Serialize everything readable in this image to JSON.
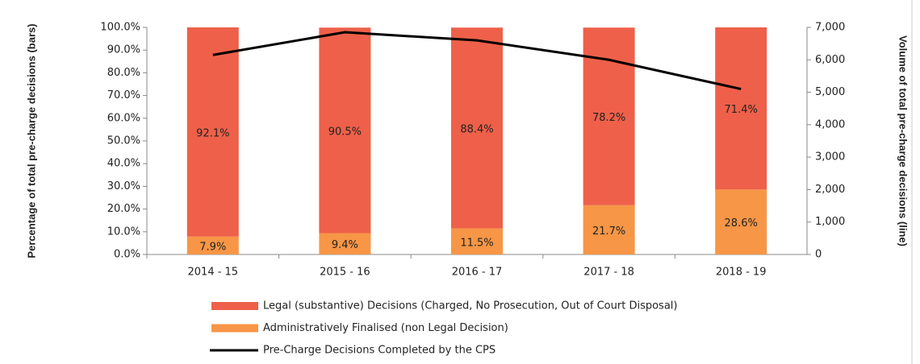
{
  "chart_data": {
    "type": "bar",
    "stacked": true,
    "categories": [
      "2014 - 15",
      "2015 - 16",
      "2016 - 17",
      "2017 - 18",
      "2018 - 19"
    ],
    "series": [
      {
        "name": "Legal (substantive) Decisions (Charged, No Prosecution, Out of Court Disposal)",
        "color": "#ee6049",
        "values": [
          92.1,
          90.5,
          88.4,
          78.2,
          71.4
        ],
        "value_labels": [
          "92.1%",
          "90.5%",
          "88.4%",
          "78.2%",
          "71.4%"
        ]
      },
      {
        "name": "Administratively Finalised (non Legal Decision)",
        "color": "#f79646",
        "values": [
          7.9,
          9.4,
          11.5,
          21.7,
          28.6
        ],
        "value_labels": [
          "7.9%",
          "9.4%",
          "11.5%",
          "21.7%",
          "28.6%"
        ]
      },
      {
        "name": "Pre-Charge Decisions Completed by the CPS",
        "color": "#000000",
        "type": "line",
        "axis": "y2",
        "values": [
          6150,
          6850,
          6600,
          6000,
          5100
        ]
      }
    ],
    "ylabel": "Percentage of total pre-charge decisions (bars)",
    "y2label": "Volume of total pre-charge decisions (line)",
    "ylim": [
      0,
      100
    ],
    "yticks": [
      {
        "value": 0,
        "label": "0.0%"
      },
      {
        "value": 10,
        "label": "10.0%"
      },
      {
        "value": 20,
        "label": "20.0%"
      },
      {
        "value": 30,
        "label": "30.0%"
      },
      {
        "value": 40,
        "label": "40.0%"
      },
      {
        "value": 50,
        "label": "50.0%"
      },
      {
        "value": 60,
        "label": "60.0%"
      },
      {
        "value": 70,
        "label": "70.0%"
      },
      {
        "value": 80,
        "label": "80.0%"
      },
      {
        "value": 90,
        "label": "90.0%"
      },
      {
        "value": 100,
        "label": "100.0%"
      }
    ],
    "y2lim": [
      0,
      7000
    ],
    "y2ticks": [
      0,
      {
        "value": 1000,
        "label": "1,000"
      },
      {
        "value": 2000,
        "label": "2,000"
      },
      {
        "value": 3000,
        "label": "3,000"
      },
      {
        "value": 4000,
        "label": "4,000"
      },
      {
        "value": 5000,
        "label": "5,000"
      },
      {
        "value": 6000,
        "label": "6,000"
      },
      {
        "value": 7000,
        "label": "7,000"
      }
    ],
    "legend": "bottom"
  }
}
